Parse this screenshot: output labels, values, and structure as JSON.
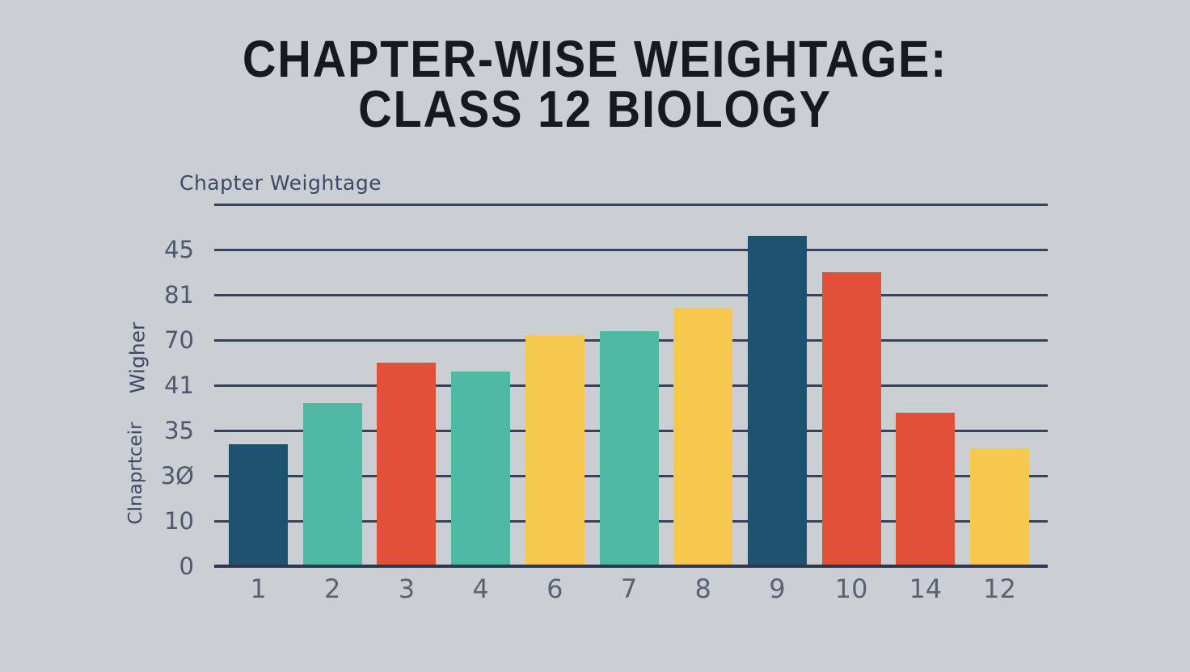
{
  "title": {
    "line1": "CHAPTER-WISE WEIGHTAGE:",
    "line2": "CLASS 12 BIOLOGY"
  },
  "axis_labels": {
    "top_left": "Chapter Weightage",
    "rotated_upper": "Wigher",
    "rotated_lower": "Clnaprtceir"
  },
  "chart_data": {
    "type": "bar",
    "title": "CHAPTER-WISE WEIGHTAGE: CLASS 12 BIOLOGY",
    "subtitle": "Chapter Weightage",
    "categories": [
      "1",
      "2",
      "3",
      "4",
      "6",
      "7",
      "8",
      "9",
      "10",
      "14",
      "12"
    ],
    "values": [
      27,
      36,
      45,
      43,
      51,
      52,
      57,
      73,
      65,
      34,
      26
    ],
    "bar_color_names": [
      "navy",
      "teal",
      "red",
      "teal",
      "yellow",
      "teal",
      "yellow",
      "navy",
      "red",
      "red",
      "yellow"
    ],
    "palette": {
      "navy": "#1c5170",
      "teal": "#4eb8a3",
      "red": "#e2503a",
      "yellow": "#f6c84e"
    },
    "xlabel": "",
    "ylabel": "Wigher Clnaprtceir",
    "ylim": [
      0,
      80
    ],
    "gridline_step": 10,
    "grid": true,
    "legend_position": "none",
    "ytick_labels_top_to_bottom": [
      "45",
      "81",
      "70",
      "41",
      "35",
      "3Ø",
      "10",
      "0"
    ]
  },
  "colors": {
    "background": "#cbcfd3",
    "gridline": "#36415a",
    "baseline": "#2c3850",
    "title_text": "#17191d",
    "axis_text": "#4d576d",
    "xtick_text": "#5a6374",
    "label_text": "#3e4965"
  }
}
